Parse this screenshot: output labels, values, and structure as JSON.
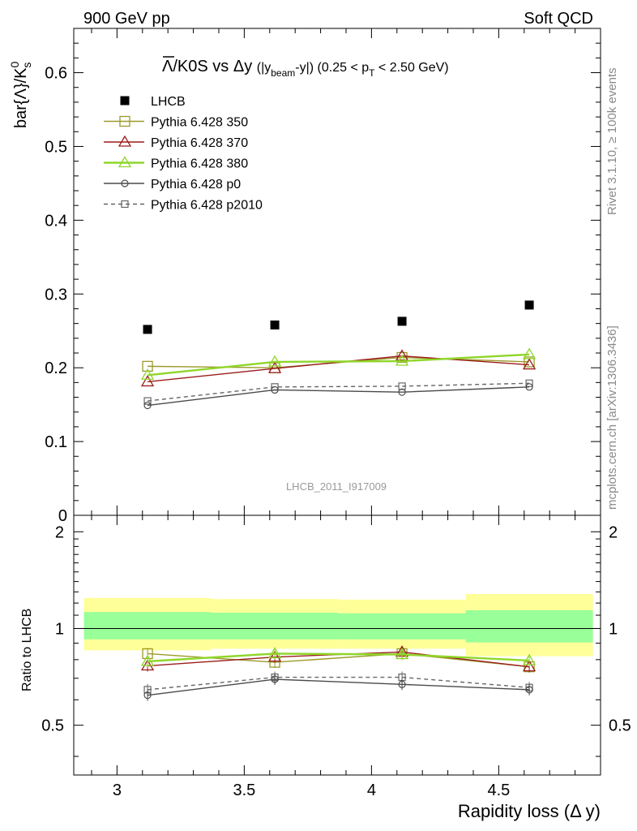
{
  "header": {
    "left": "900 GeV pp",
    "right": "Soft QCD"
  },
  "side_labels": {
    "top": "Rivet 3.1.10, ≥ 100k events",
    "bottom": "mcplots.cern.ch [arXiv:1306.3436]"
  },
  "watermark": "LHCB_2011_I917009",
  "chart_data": [
    {
      "type": "scatter",
      "title": "Λ̅/K0S vs Δy (|y_beam-y|) (0.25 < p_T < 2.50 GeV)",
      "ylabel": "bar{Λ}/K⁰ₛ",
      "xlim": [
        2.83,
        4.9
      ],
      "ylim": [
        0,
        0.66
      ],
      "y_ticks": [
        "0",
        "0.1",
        "0.2",
        "0.3",
        "0.4",
        "0.5",
        "0.6"
      ],
      "x": [
        3.12,
        3.62,
        4.12,
        4.62
      ],
      "x_bins": [
        [
          2.87,
          3.37
        ],
        [
          3.37,
          3.87
        ],
        [
          3.87,
          4.37
        ],
        [
          4.37,
          4.87
        ]
      ],
      "legend_position": "top-left",
      "series": [
        {
          "name": "LHCB",
          "marker": "filled-square",
          "color": "#000000",
          "line": "none",
          "values": [
            0.252,
            0.258,
            0.263,
            0.285
          ]
        },
        {
          "name": "Pythia 6.428 350",
          "marker": "open-square",
          "color": "#9a9a2a",
          "line": "solid",
          "values": [
            0.202,
            0.2,
            0.214,
            0.208
          ]
        },
        {
          "name": "Pythia 6.428 370",
          "marker": "open-triangle",
          "color": "#9b1c1c",
          "line": "solid",
          "values": [
            0.181,
            0.199,
            0.216,
            0.204
          ]
        },
        {
          "name": "Pythia 6.428 380",
          "marker": "open-triangle",
          "color": "#8fd62a",
          "line": "solid",
          "values": [
            0.19,
            0.208,
            0.209,
            0.218
          ]
        },
        {
          "name": "Pythia 6.428 p0",
          "marker": "open-circle",
          "color": "#4a4a4a",
          "line": "solid",
          "values": [
            0.149,
            0.17,
            0.167,
            0.174
          ]
        },
        {
          "name": "Pythia 6.428 p2010",
          "marker": "open-square-small",
          "color": "#666666",
          "line": "dashed",
          "values": [
            0.155,
            0.174,
            0.175,
            0.179
          ]
        }
      ]
    },
    {
      "type": "scatter",
      "ylabel": "Ratio to LHCB",
      "xlabel": "Rapidity loss (Δ y)",
      "xlim": [
        2.83,
        4.9
      ],
      "ylim": [
        0.35,
        2.25
      ],
      "x_ticks": [
        "3",
        "3.5",
        "4",
        "4.5"
      ],
      "y_ticks": [
        "0.5",
        "1",
        "2"
      ],
      "reference": 1,
      "bands": {
        "outer_color": "#ffff99",
        "inner_color": "#99ff99",
        "outer": [
          [
            0.855,
            1.245
          ],
          [
            0.865,
            1.235
          ],
          [
            0.865,
            1.23
          ],
          [
            0.82,
            1.28
          ]
        ],
        "inner": [
          [
            0.925,
            1.125
          ],
          [
            0.925,
            1.12
          ],
          [
            0.925,
            1.115
          ],
          [
            0.905,
            1.14
          ]
        ]
      },
      "series": [
        {
          "name": "Pythia 6.428 350",
          "values": [
            0.835,
            0.785,
            0.835,
            0.76
          ]
        },
        {
          "name": "Pythia 6.428 370",
          "values": [
            0.765,
            0.815,
            0.845,
            0.76
          ]
        },
        {
          "name": "Pythia 6.428 380",
          "values": [
            0.79,
            0.835,
            0.83,
            0.795
          ]
        },
        {
          "name": "Pythia 6.428 p0",
          "values": [
            0.62,
            0.695,
            0.67,
            0.645
          ]
        },
        {
          "name": "Pythia 6.428 p2010",
          "values": [
            0.645,
            0.705,
            0.705,
            0.655
          ]
        }
      ]
    }
  ]
}
